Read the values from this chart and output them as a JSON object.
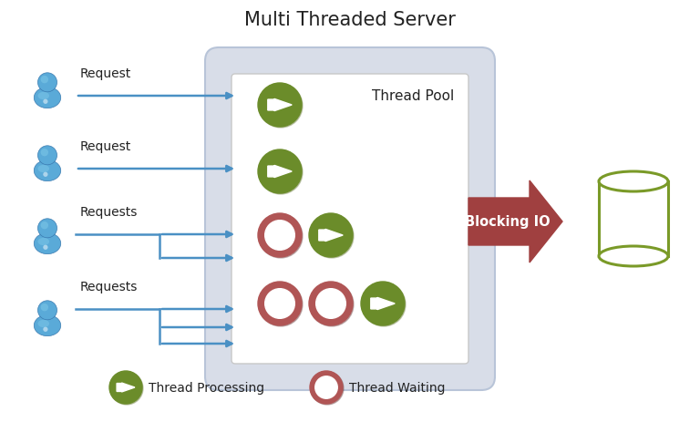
{
  "title": "Multi Threaded Server",
  "title_fontsize": 15,
  "background_color": "#ffffff",
  "green_circle_color": "#6b8c2a",
  "red_circle_color": "#b05555",
  "server_outer_color": "#d8dde8",
  "server_outer_edge": "#b8c4d8",
  "server_inner_color": "#ffffff",
  "server_inner_edge": "#cccccc",
  "arrow_color": "#4a90c4",
  "big_arrow_color": "#a04040",
  "db_color": "#7a9a28",
  "thread_pool_label": "Thread Pool",
  "blocking_io_label": "Blocking IO",
  "thread_processing_label": "Thread Processing",
  "thread_waiting_label": "Thread Waiting",
  "requests": [
    "Request",
    "Request",
    "Requests",
    "Requests"
  ],
  "person_color_dark": "#3a7ab0",
  "person_color_light": "#7ec8e8",
  "person_color_mid": "#5aaad8"
}
